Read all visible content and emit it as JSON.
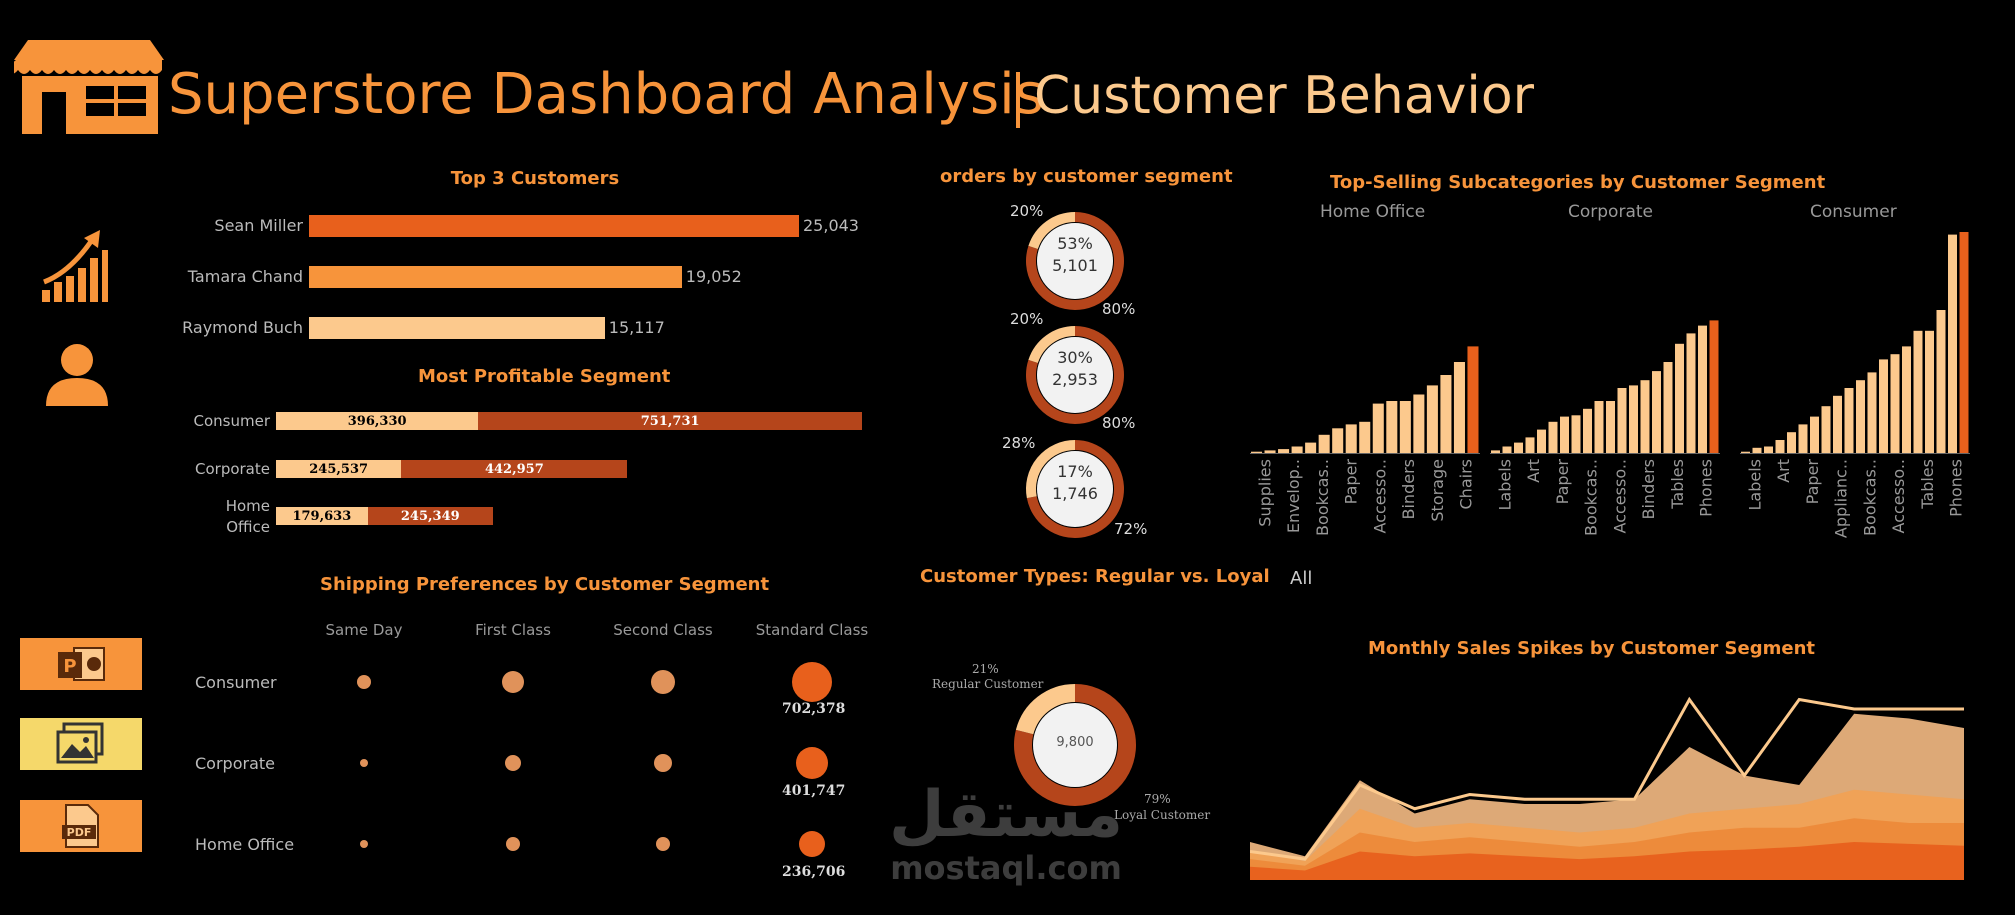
{
  "header": {
    "title": "Superstore Dashboard Analysis",
    "subtitle": "Customer Behavior"
  },
  "colors": {
    "accent": "#f7943b",
    "dark_orange": "#e8601c",
    "rust": "#b5451b",
    "light": "#fcc98d",
    "background": "#000000"
  },
  "top_customers": {
    "title": "Top 3 Customers",
    "names": [
      "Sean Miller",
      "Tamara Chand",
      "Raymond Buch"
    ],
    "values": [
      25043,
      19052,
      15117
    ],
    "labels": [
      "25,043",
      "19,052",
      "15,117"
    ]
  },
  "profitable_segment": {
    "title": "Most Profitable Segment",
    "segments": [
      "Consumer",
      "Corporate",
      "Home Office"
    ],
    "segment_label_lines": [
      [
        "Consumer"
      ],
      [
        "Corporate"
      ],
      [
        "Home",
        "Office"
      ]
    ],
    "part1": [
      396330,
      245537,
      179633
    ],
    "part2": [
      751731,
      442957,
      245349
    ],
    "part1_labels": [
      "396,330",
      "245,537",
      "179,633"
    ],
    "part2_labels": [
      "751,731",
      "442,957",
      "245,349"
    ]
  },
  "orders_by_segment": {
    "title": "orders by customer segment",
    "donuts": [
      {
        "pct": "53%",
        "count": "5,101",
        "small": "20%",
        "large": "80%",
        "small_share": 0.2
      },
      {
        "pct": "30%",
        "count": "2,953",
        "small": "20%",
        "large": "80%",
        "small_share": 0.2
      },
      {
        "pct": "17%",
        "count": "1,746",
        "small": "28%",
        "large": "72%",
        "small_share": 0.28
      }
    ]
  },
  "subcategories": {
    "title": "Top-Selling Subcategories by Customer Segment",
    "panels": [
      "Home Office",
      "Corporate",
      "Consumer"
    ],
    "axis_labels": [
      [
        "Supplies",
        "Envelop..",
        "Bookcas..",
        "Paper",
        "Accesso..",
        "Binders",
        "Storage",
        "Chairs"
      ],
      [
        "Labels",
        "Art",
        "Paper",
        "Bookcas..",
        "Accesso..",
        "Binders",
        "Tables",
        "Phones"
      ],
      [
        "Labels",
        "Art",
        "Paper",
        "Applianc..",
        "Bookcas..",
        "Accesso..",
        "Tables",
        "Phones"
      ]
    ],
    "values": [
      [
        1,
        2,
        3,
        5,
        8,
        14,
        19,
        22,
        24,
        38,
        40,
        40,
        45,
        52,
        60,
        70,
        82
      ],
      [
        2,
        5,
        8,
        12,
        18,
        24,
        28,
        29,
        34,
        40,
        40,
        50,
        52,
        56,
        63,
        70,
        84,
        92,
        98,
        102
      ],
      [
        1,
        4,
        5,
        10,
        16,
        22,
        28,
        36,
        44,
        50,
        56,
        62,
        72,
        76,
        82,
        94,
        94,
        110,
        168,
        170
      ]
    ]
  },
  "filter": {
    "label": "All"
  },
  "shipping": {
    "title": "Shipping Preferences by Customer Segment",
    "columns": [
      "Same Day",
      "First Class",
      "Second Class",
      "Standard Class"
    ],
    "rows": [
      "Consumer",
      "Corporate",
      "Home Office"
    ],
    "sizes": [
      [
        14,
        22,
        24,
        40
      ],
      [
        8,
        16,
        18,
        32
      ],
      [
        8,
        14,
        14,
        26
      ]
    ],
    "standard_labels": [
      "702,378",
      "401,747",
      "236,706"
    ]
  },
  "customer_types": {
    "title": "Customer Types: Regular vs. Loyal",
    "total": "9,800",
    "regular_pct": "21%",
    "regular_label": "Regular Customer",
    "loyal_pct": "79%",
    "loyal_label": "Loyal Customer",
    "regular_share": 0.21
  },
  "monthly": {
    "title": "Monthly Sales Spikes by Customer Segment",
    "layers": [
      [
        40,
        25,
        105,
        70,
        85,
        80,
        80,
        85,
        140,
        110,
        100,
        175,
        170,
        160
      ],
      [
        30,
        20,
        75,
        55,
        60,
        55,
        50,
        55,
        70,
        75,
        80,
        95,
        90,
        85
      ],
      [
        22,
        15,
        50,
        40,
        45,
        40,
        35,
        40,
        50,
        55,
        55,
        65,
        60,
        60
      ],
      [
        14,
        10,
        30,
        25,
        28,
        25,
        22,
        25,
        30,
        32,
        35,
        40,
        38,
        36
      ]
    ],
    "lines": [
      [
        30,
        22,
        100,
        75,
        90,
        85,
        85,
        85,
        190,
        110,
        190,
        180,
        180,
        180
      ]
    ]
  },
  "export_icons": [
    "powerpoint-icon",
    "image-icon",
    "pdf-icon"
  ],
  "watermark": {
    "arabic": "مستقل",
    "latin": "mostaql.com"
  }
}
